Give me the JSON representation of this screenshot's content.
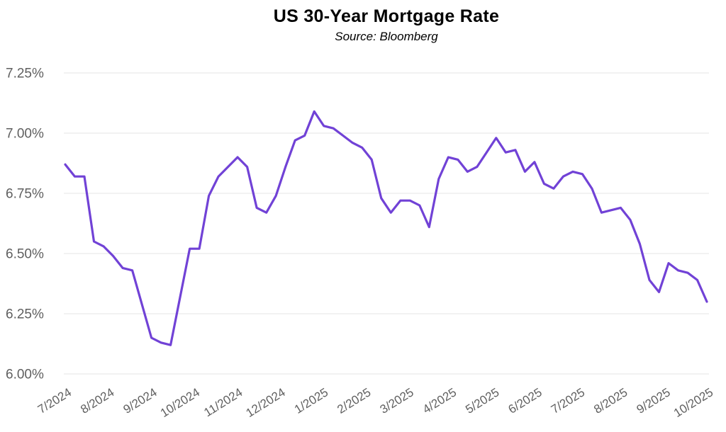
{
  "header": {
    "title": "US 30-Year Mortgage Rate",
    "subtitle": "Source: Bloomberg"
  },
  "chart_data": {
    "type": "line",
    "title": "US 30-Year Mortgage Rate",
    "subtitle": "Source: Bloomberg",
    "xlabel": "",
    "ylabel": "",
    "ylim": [
      6.0,
      7.25
    ],
    "grid": "horizontal",
    "legend_position": "none",
    "y_ticks": [
      7.25,
      7.0,
      6.75,
      6.5,
      6.25,
      6.0
    ],
    "y_tick_labels": [
      "7.25%",
      "7.00%",
      "6.75%",
      "6.50%",
      "6.25%",
      "6.00%"
    ],
    "x_tick_labels": [
      "7/2024",
      "8/2024",
      "9/2024",
      "10/2024",
      "11/2024",
      "12/2024",
      "1/2025",
      "2/2025",
      "3/2025",
      "4/2025",
      "5/2025",
      "6/2025",
      "7/2025",
      "8/2025",
      "9/2025",
      "10/2025"
    ],
    "series": [
      {
        "name": "US 30-Year Mortgage Rate (%)",
        "color": "#7142d6",
        "values": [
          6.87,
          6.82,
          6.82,
          6.55,
          6.53,
          6.49,
          6.44,
          6.43,
          6.29,
          6.15,
          6.13,
          6.12,
          6.32,
          6.52,
          6.52,
          6.74,
          6.82,
          6.86,
          6.9,
          6.86,
          6.69,
          6.67,
          6.74,
          6.86,
          6.97,
          6.99,
          7.09,
          7.03,
          7.02,
          6.99,
          6.96,
          6.94,
          6.89,
          6.73,
          6.67,
          6.72,
          6.72,
          6.7,
          6.61,
          6.81,
          6.9,
          6.89,
          6.84,
          6.86,
          6.92,
          6.98,
          6.92,
          6.93,
          6.84,
          6.88,
          6.79,
          6.77,
          6.82,
          6.84,
          6.83,
          6.77,
          6.67,
          6.68,
          6.69,
          6.64,
          6.54,
          6.39,
          6.34,
          6.46,
          6.43,
          6.42,
          6.39,
          6.3
        ]
      }
    ]
  },
  "colors": {
    "line": "#7142d6",
    "grid": "#ebebeb",
    "title_text": "#4a4a4a",
    "subtitle_text": "#5a5a5a",
    "tick_text": "#5f5f5f",
    "background": "#ffffff"
  }
}
